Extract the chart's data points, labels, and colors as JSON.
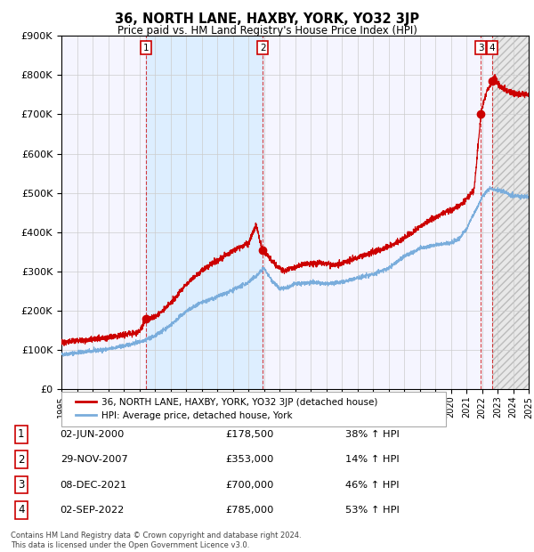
{
  "title": "36, NORTH LANE, HAXBY, YORK, YO32 3JP",
  "subtitle": "Price paid vs. HM Land Registry's House Price Index (HPI)",
  "ylim": [
    0,
    900000
  ],
  "yticks": [
    0,
    100000,
    200000,
    300000,
    400000,
    500000,
    600000,
    700000,
    800000,
    900000
  ],
  "ytick_labels": [
    "£0",
    "£100K",
    "£200K",
    "£300K",
    "£400K",
    "£500K",
    "£600K",
    "£700K",
    "£800K",
    "£900K"
  ],
  "x_start_year": 1995,
  "x_end_year": 2025,
  "red_line_color": "#cc0000",
  "blue_line_color": "#7aaddc",
  "shade_color": "#ddeeff",
  "hatch_color": "#e8e8e8",
  "grid_color": "#cccccc",
  "dashed_line_color": "#cc0000",
  "sale_points": [
    {
      "year": 2000.42,
      "value": 178500,
      "label": "1"
    },
    {
      "year": 2007.92,
      "value": 353000,
      "label": "2"
    },
    {
      "year": 2021.93,
      "value": 700000,
      "label": "3"
    },
    {
      "year": 2022.67,
      "value": 785000,
      "label": "4"
    }
  ],
  "legend_entries": [
    {
      "color": "#cc0000",
      "label": "36, NORTH LANE, HAXBY, YORK, YO32 3JP (detached house)"
    },
    {
      "color": "#7aaddc",
      "label": "HPI: Average price, detached house, York"
    }
  ],
  "table_rows": [
    {
      "num": "1",
      "date": "02-JUN-2000",
      "price": "£178,500",
      "pct": "38% ↑ HPI"
    },
    {
      "num": "2",
      "date": "29-NOV-2007",
      "price": "£353,000",
      "pct": "14% ↑ HPI"
    },
    {
      "num": "3",
      "date": "08-DEC-2021",
      "price": "£700,000",
      "pct": "46% ↑ HPI"
    },
    {
      "num": "4",
      "date": "02-SEP-2022",
      "price": "£785,000",
      "pct": "53% ↑ HPI"
    }
  ],
  "footnote": "Contains HM Land Registry data © Crown copyright and database right 2024.\nThis data is licensed under the Open Government Licence v3.0.",
  "background_color": "#ffffff",
  "plot_bg_color": "#f5f5ff"
}
